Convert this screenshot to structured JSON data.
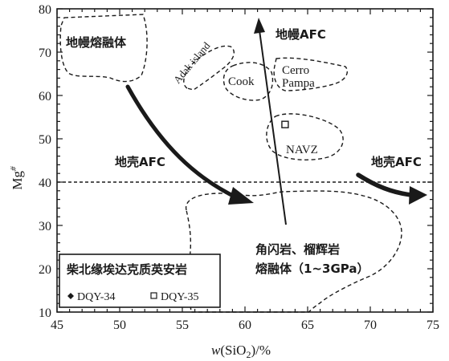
{
  "axes": {
    "x_label_w": "w",
    "x_label_rest": "(SiO",
    "x_label_sub": "2",
    "x_label_end": ")/%",
    "y_label_main": "Mg",
    "y_label_sup": "#",
    "x_ticks": [
      "45",
      "50",
      "55",
      "60",
      "65",
      "70",
      "75"
    ],
    "y_ticks": [
      "10",
      "20",
      "30",
      "40",
      "50",
      "60",
      "70",
      "80"
    ]
  },
  "chart_data": {
    "type": "scatter",
    "xlim": [
      45,
      75
    ],
    "ylim": [
      10,
      80
    ],
    "reference_line_y": 40,
    "points": [
      {
        "name": "DQY-35",
        "x": 63.2,
        "y": 53.3,
        "marker": "open-square"
      }
    ]
  },
  "fields": {
    "mantle_melt": "地幔熔融体",
    "adak": "Adak island",
    "cook": "Cook",
    "cerro": "Cerro",
    "pampa": "Pampa",
    "navz": "NAVZ",
    "amph_line1": "角闪岩、榴辉岩",
    "amph_line2": "熔融体（1~3GPa）"
  },
  "trends": {
    "mantle_afc": "地幔AFC",
    "crust_afc_left": "地壳AFC",
    "crust_afc_right": "地壳AFC"
  },
  "legend": {
    "title": "柴北缘埃达克质英安岩",
    "item1": "DQY-34",
    "item2": "DQY-35"
  },
  "colors": {
    "ink": "#1a1a1a",
    "background": "#ffffff"
  }
}
